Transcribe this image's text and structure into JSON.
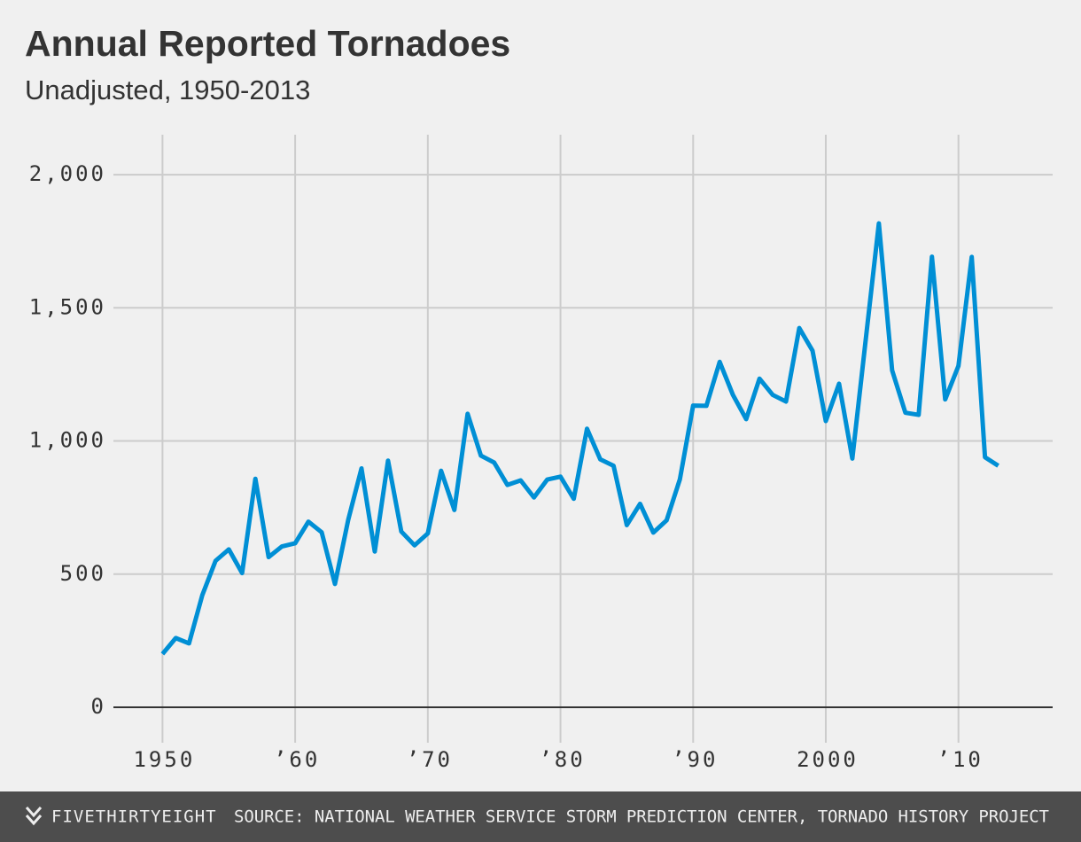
{
  "chart_data": {
    "type": "line",
    "title": "Annual Reported Tornadoes",
    "subtitle": "Unadjusted, 1950-2013",
    "x": [
      1950,
      1951,
      1952,
      1953,
      1954,
      1955,
      1956,
      1957,
      1958,
      1959,
      1960,
      1961,
      1962,
      1963,
      1964,
      1965,
      1966,
      1967,
      1968,
      1969,
      1970,
      1971,
      1972,
      1973,
      1974,
      1975,
      1976,
      1977,
      1978,
      1979,
      1980,
      1981,
      1982,
      1983,
      1984,
      1985,
      1986,
      1987,
      1988,
      1989,
      1990,
      1991,
      1992,
      1993,
      1994,
      1995,
      1996,
      1997,
      1998,
      1999,
      2000,
      2001,
      2002,
      2003,
      2004,
      2005,
      2006,
      2007,
      2008,
      2009,
      2010,
      2011,
      2012,
      2013
    ],
    "series": [
      {
        "name": "Tornadoes",
        "color": "#008fd5",
        "values": [
          200,
          260,
          240,
          421,
          550,
          593,
          504,
          858,
          564,
          604,
          616,
          697,
          657,
          463,
          704,
          897,
          585,
          926,
          660,
          608,
          653,
          888,
          741,
          1102,
          945,
          919,
          835,
          852,
          788,
          855,
          866,
          783,
          1046,
          931,
          907,
          684,
          764,
          656,
          702,
          856,
          1133,
          1132,
          1297,
          1173,
          1082,
          1234,
          1173,
          1148,
          1424,
          1339,
          1075,
          1215,
          934,
          1376,
          1817,
          1265,
          1106,
          1098,
          1692,
          1156,
          1282,
          1691,
          939,
          907
        ]
      }
    ],
    "xlim": [
      1946.3,
      2017.1
    ],
    "xticks": [
      1950,
      {
        "value": 1960,
        "label": "’60"
      },
      {
        "value": 1970,
        "label": "’70"
      },
      {
        "value": 1980,
        "label": "’80"
      },
      {
        "value": 1990,
        "label": "’90"
      },
      2000,
      {
        "value": 2010,
        "label": "’10"
      }
    ],
    "ylim": [
      0,
      2150
    ],
    "yticks": [
      0,
      500,
      {
        "value": 1000,
        "label": "1,000"
      },
      {
        "value": 1500,
        "label": "1,500"
      },
      {
        "value": 2000,
        "label": "2,000"
      }
    ],
    "grid": true
  },
  "footer": {
    "brand": "FIVETHIRTYEIGHT",
    "source": "SOURCE: NATIONAL WEATHER SERVICE STORM PREDICTION CENTER, TORNADO HISTORY PROJECT"
  }
}
